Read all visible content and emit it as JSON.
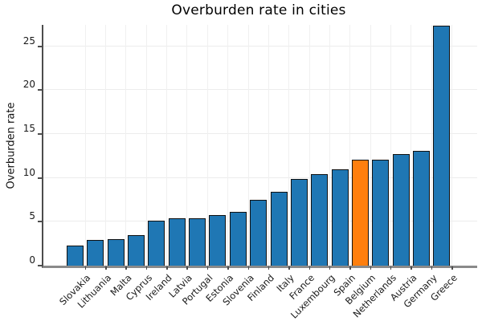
{
  "title": "Overburden rate in cities",
  "y_axis_label": "Overburden rate",
  "chart_data": {
    "type": "bar",
    "title": "Overburden rate in cities",
    "xlabel": "",
    "ylabel": "Overburden rate",
    "categories": [
      "Slovakia",
      "Lithuania",
      "Malta",
      "Cyprus",
      "Ireland",
      "Latvia",
      "Portugal",
      "Estonia",
      "Slovenia",
      "Finland",
      "Italy",
      "France",
      "Luxembourg",
      "Spain",
      "Belgium",
      "Netherlands",
      "Austria",
      "Germany",
      "Greece"
    ],
    "values": [
      2.3,
      2.9,
      3.0,
      3.5,
      5.1,
      5.4,
      5.4,
      5.8,
      6.1,
      7.5,
      8.4,
      9.9,
      10.4,
      11.0,
      12.1,
      12.1,
      12.7,
      13.1,
      27.4
    ],
    "highlight_index": 14,
    "highlight_category": "Belgium",
    "bar_color": "#1f77b4",
    "highlight_color": "#ff7f0e",
    "bar_edge_color": "#111111",
    "yticks": [
      0,
      5,
      10,
      15,
      20,
      25
    ],
    "ylim": [
      0,
      27.45
    ],
    "grid": true,
    "legend": false,
    "x_tick_rotation_deg": 45
  }
}
